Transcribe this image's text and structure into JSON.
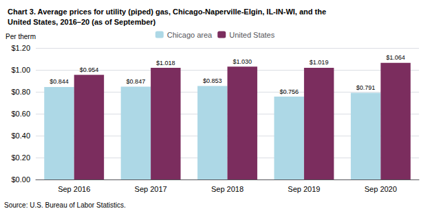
{
  "chart_data": {
    "type": "bar",
    "title": "Chart 3. Average prices for utility (piped) gas, Chicago-Naperville-Elgin, IL-IN-WI, and the\nUnited States, 2016–20 (as of September)",
    "ylabel": "Per therm",
    "annotations": [
      "Source: U.S. Bureau of Labor Statistics."
    ],
    "categories": [
      "Sep 2016",
      "Sep 2017",
      "Sep 2018",
      "Sep 2019",
      "Sep 2020"
    ],
    "series": [
      {
        "name": "Chicago area",
        "color": "#add8e6",
        "values": [
          0.844,
          0.847,
          0.853,
          0.756,
          0.791
        ],
        "value_labels": [
          "$0.844",
          "$0.847",
          "$0.853",
          "$0.756",
          "$0.791"
        ]
      },
      {
        "name": "United States",
        "color": "#7b2d5e",
        "values": [
          0.954,
          1.018,
          1.03,
          1.019,
          1.064
        ],
        "value_labels": [
          "$0.954",
          "$1.018",
          "$1.030",
          "$1.019",
          "$1.064"
        ]
      }
    ],
    "ylim": [
      0.0,
      1.2
    ],
    "yticks": [
      {
        "value": 0.0,
        "label": "$0.00"
      },
      {
        "value": 0.2,
        "label": "$0.20"
      },
      {
        "value": 0.4,
        "label": "$0.40"
      },
      {
        "value": 0.6,
        "label": "$0.60"
      },
      {
        "value": 0.8,
        "label": "$0.80"
      },
      {
        "value": 1.0,
        "label": "$1.00"
      },
      {
        "value": 1.2,
        "label": "$1.20"
      }
    ],
    "grid": true,
    "legend": "top",
    "data_labels": true
  }
}
